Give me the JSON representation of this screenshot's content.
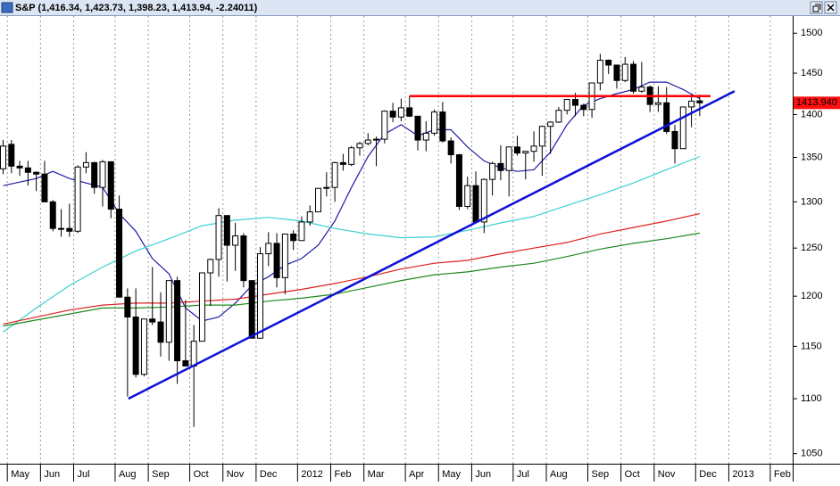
{
  "chart_data": {
    "type": "candlestick",
    "title": "S&P (1,416.34, 1,423.73, 1,398.23, 1,413.94, -2.24011)",
    "categories": [
      null,
      "May",
      null,
      null,
      null,
      "Jun",
      null,
      null,
      null,
      "Jul",
      null,
      null,
      null,
      null,
      "Aug",
      null,
      null,
      null,
      "Sep",
      null,
      null,
      null,
      null,
      "Oct",
      null,
      null,
      null,
      "Nov",
      null,
      null,
      null,
      "Dec",
      null,
      null,
      null,
      null,
      "2012",
      null,
      null,
      null,
      "Feb",
      null,
      null,
      null,
      "Mar",
      null,
      null,
      null,
      null,
      "Apr",
      null,
      null,
      null,
      "May",
      null,
      null,
      null,
      "Jun",
      null,
      null,
      null,
      null,
      "Jul",
      null,
      null,
      null,
      "Aug",
      null,
      null,
      null,
      null,
      "Sep",
      null,
      null,
      null,
      "Oct",
      null,
      null,
      null,
      "Nov",
      null,
      null,
      null,
      null,
      "Dec",
      null,
      null,
      null,
      "2013",
      null,
      null,
      null,
      null,
      "Feb",
      null,
      null
    ],
    "open": [
      1337,
      1365,
      1340,
      1338,
      1333,
      1331,
      1300,
      1271,
      1271,
      1268,
      1339,
      1344,
      1316,
      1345,
      1292,
      1199,
      1179,
      1123,
      1177,
      1174,
      1154,
      1216,
      1136,
      1131,
      1155,
      1224,
      1238,
      1285,
      1253,
      1263,
      1216,
      1158,
      1244,
      1255,
      1219,
      1265,
      1258,
      1278,
      1289,
      1315,
      1316,
      1344,
      1342,
      1361,
      1366,
      1370,
      1371,
      1404,
      1397,
      1408,
      1398,
      1370,
      1378,
      1403,
      1369,
      1353,
      1295,
      1318,
      1278,
      1325,
      1343,
      1335,
      1362,
      1355,
      1357,
      1363,
      1386,
      1391,
      1405,
      1418,
      1411,
      1406,
      1438,
      1466,
      1460,
      1441,
      1461,
      1428,
      1433,
      1412,
      1414,
      1380,
      1360,
      1409,
      1416.34,
      null,
      null,
      null,
      null,
      null,
      null,
      null,
      null,
      null,
      null,
      null
    ],
    "high": [
      1370,
      1370,
      1346,
      1346,
      1334,
      1346,
      1302,
      1292,
      1298,
      1341,
      1356,
      1345,
      1347,
      1345,
      1307,
      1208,
      1208,
      1177,
      1230,
      1204,
      1215,
      1220,
      1196,
      1171,
      1224,
      1239,
      1293,
      1285,
      1277,
      1266,
      1216,
      1251,
      1267,
      1266,
      1265,
      1269,
      1284,
      1296,
      1315,
      1333,
      1345,
      1354,
      1363,
      1368,
      1378,
      1374,
      1405,
      1414,
      1419,
      1422,
      1398,
      1392,
      1406,
      1415,
      1373,
      1354,
      1328,
      1334,
      1326,
      1345,
      1364,
      1362,
      1375,
      1357,
      1380,
      1387,
      1392,
      1409,
      1418,
      1426,
      1413,
      1438,
      1474,
      1467,
      1460,
      1470,
      1465,
      1464,
      1435,
      1434,
      1433,
      1388,
      1409,
      1424,
      1423.73,
      null,
      null,
      null,
      null,
      null,
      null,
      null,
      null,
      null,
      null,
      null
    ],
    "low": [
      1331,
      1332,
      1329,
      1318,
      1312,
      1300,
      1268,
      1262,
      1262,
      1266,
      1332,
      1309,
      1295,
      1282,
      1199,
      1102,
      1120,
      1121,
      1171,
      1140,
      1136,
      1114,
      1131,
      1074,
      1155,
      1190,
      1220,
      1215,
      1226,
      1209,
      1158,
      1158,
      1231,
      1209,
      1202,
      1248,
      1258,
      1274,
      1289,
      1306,
      1300,
      1335,
      1340,
      1352,
      1364,
      1340,
      1366,
      1391,
      1392,
      1397,
      1358,
      1357,
      1375,
      1367,
      1343,
      1291,
      1292,
      1278,
      1266,
      1307,
      1324,
      1306,
      1352,
      1325,
      1345,
      1329,
      1354,
      1390,
      1400,
      1398,
      1398,
      1396,
      1429,
      1449,
      1431,
      1439,
      1425,
      1426,
      1403,
      1403,
      1377,
      1343,
      1360,
      1385,
      1398.23,
      null,
      null,
      null,
      null,
      null,
      null,
      null,
      null,
      null,
      null,
      null
    ],
    "close": [
      1363,
      1340,
      1338,
      1333,
      1331,
      1300,
      1271,
      1271,
      1268,
      1339,
      1344,
      1316,
      1345,
      1292,
      1199,
      1179,
      1123,
      1177,
      1174,
      1154,
      1216,
      1136,
      1131,
      1155,
      1224,
      1238,
      1285,
      1253,
      1263,
      1216,
      1158,
      1244,
      1255,
      1219,
      1265,
      1258,
      1278,
      1289,
      1315,
      1316,
      1344,
      1342,
      1361,
      1366,
      1370,
      1371,
      1404,
      1397,
      1408,
      1398,
      1370,
      1378,
      1403,
      1369,
      1353,
      1295,
      1318,
      1278,
      1325,
      1343,
      1335,
      1362,
      1355,
      1357,
      1363,
      1386,
      1391,
      1405,
      1418,
      1411,
      1406,
      1438,
      1466,
      1460,
      1441,
      1461,
      1428,
      1433,
      1412,
      1414,
      1380,
      1360,
      1409,
      1416,
      1413.94,
      null,
      null,
      null,
      null,
      null,
      null,
      null,
      null,
      null,
      null,
      null
    ],
    "up_color": "#ffffff",
    "down_color": "#000000",
    "ylim": [
      1041,
      1522
    ],
    "log_scale": true,
    "yticks": [
      1050,
      1100,
      1150,
      1200,
      1250,
      1300,
      1350,
      1400,
      1450,
      1500
    ],
    "x_grid": true,
    "series": [
      {
        "color": "#1c1ca8",
        "x": [
          0,
          4,
          6,
          8,
          12,
          14,
          16,
          18,
          20,
          22,
          24,
          26,
          28,
          30,
          32,
          34,
          36,
          38,
          40,
          42,
          44,
          46,
          48,
          50,
          52,
          54,
          56,
          58,
          60,
          62,
          64,
          66,
          68,
          70,
          72,
          74,
          76,
          78,
          80,
          82,
          84
        ],
        "values": [
          1318,
          1326,
          1334,
          1326,
          1316,
          1287,
          1268,
          1239,
          1223,
          1188,
          1175,
          1179,
          1193,
          1211,
          1220,
          1232,
          1239,
          1253,
          1279,
          1316,
          1351,
          1377,
          1388,
          1375,
          1382,
          1382,
          1362,
          1346,
          1338,
          1334,
          1336,
          1356,
          1388,
          1411,
          1419,
          1425,
          1430,
          1439,
          1439,
          1430,
          1419
        ]
      },
      {
        "color": "#3cd0d0",
        "x": [
          0,
          4,
          8,
          12,
          16,
          20,
          24,
          28,
          32,
          36,
          40,
          44,
          48,
          52,
          56,
          60,
          64,
          68,
          72,
          76,
          80,
          84
        ],
        "values": [
          1164,
          1188,
          1211,
          1230,
          1247,
          1260,
          1274,
          1280,
          1283,
          1279,
          1271,
          1265,
          1261,
          1262,
          1269,
          1277,
          1284,
          1296,
          1308,
          1321,
          1336,
          1351
        ]
      },
      {
        "color": "#e02020",
        "x": [
          0,
          8,
          12,
          16,
          20,
          24,
          28,
          32,
          36,
          40,
          44,
          48,
          52,
          56,
          60,
          64,
          68,
          72,
          76,
          80,
          84
        ],
        "values": [
          1172,
          1186,
          1191,
          1193,
          1193,
          1195,
          1197,
          1202,
          1207,
          1213,
          1220,
          1228,
          1234,
          1237,
          1244,
          1250,
          1256,
          1265,
          1272,
          1279,
          1287
        ]
      },
      {
        "color": "#1f8a1f",
        "x": [
          0,
          8,
          12,
          16,
          20,
          24,
          28,
          32,
          36,
          40,
          44,
          48,
          52,
          56,
          60,
          64,
          68,
          72,
          76,
          80,
          84
        ],
        "values": [
          1170,
          1182,
          1188,
          1188,
          1189,
          1191,
          1191,
          1195,
          1198,
          1202,
          1209,
          1216,
          1222,
          1225,
          1230,
          1234,
          1241,
          1249,
          1255,
          1260,
          1266
        ]
      }
    ],
    "trendlines": [
      {
        "color": "#1010d8",
        "x": [
          15.1,
          88.2
        ],
        "values": [
          1100,
          1428
        ]
      },
      {
        "color": "#ff0000",
        "x": [
          49,
          85.3
        ],
        "values": [
          1422,
          1422
        ]
      }
    ],
    "last_price": {
      "value": 1413.94,
      "label": "1413.940",
      "color": "#ff1010"
    }
  }
}
